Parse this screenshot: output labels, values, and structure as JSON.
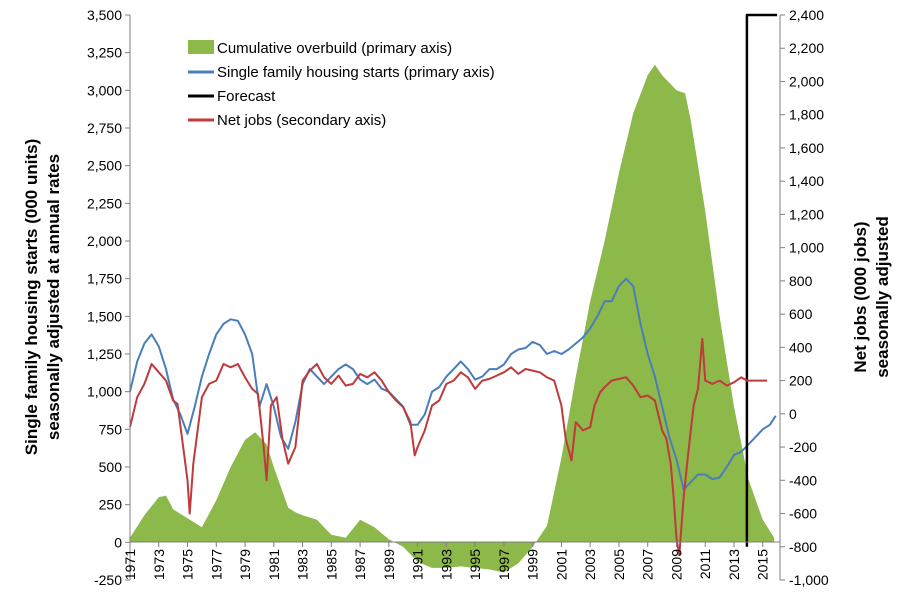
{
  "chart_data": {
    "type": "area",
    "title": "",
    "ylabel_lines": [
      "Single family housing starts (000 units)",
      "seasonally adjusted at annual rates"
    ],
    "y2label_lines": [
      "Net jobs (000 jobs)",
      "seasonally adjusted"
    ],
    "xlim": [
      1971,
      2016.2
    ],
    "ylim": [
      -250,
      3500
    ],
    "y2lim": [
      -1000,
      2400
    ],
    "x_ticks": [
      "1971",
      "1973",
      "1975",
      "1977",
      "1979",
      "1981",
      "1983",
      "1985",
      "1987",
      "1989",
      "1991",
      "1993",
      "1995",
      "1997",
      "1999",
      "2001",
      "2003",
      "2005",
      "2007",
      "2009",
      "2011",
      "2013",
      "2015"
    ],
    "y_ticks": [
      "-250",
      "0",
      "250",
      "500",
      "750",
      "1,000",
      "1,250",
      "1,500",
      "1,750",
      "2,000",
      "2,250",
      "2,500",
      "2,750",
      "3,000",
      "3,250",
      "3,500"
    ],
    "y2_ticks": [
      "-1,000",
      "-800",
      "-600",
      "-400",
      "-200",
      "0",
      "200",
      "400",
      "600",
      "800",
      "1,000",
      "1,200",
      "1,400",
      "1,600",
      "1,800",
      "2,000",
      "2,200",
      "2,400"
    ],
    "legend_position": "top-left",
    "grid": false,
    "series": [
      {
        "name": "Cumulative overbuild (primary axis)",
        "axis": "primary",
        "kind": "area",
        "color": "#8db84a",
        "x": [
          1971,
          1972,
          1973,
          1973.5,
          1974,
          1975,
          1976,
          1977,
          1978,
          1979,
          1979.7,
          1980.5,
          1981,
          1982,
          1982.5,
          1983,
          1984,
          1985,
          1986,
          1987,
          1988,
          1989,
          1990,
          1991,
          1992,
          1993,
          1994,
          1995,
          1996,
          1997,
          1998,
          1999,
          2000,
          2001,
          2002,
          2003,
          2004,
          2005,
          2006,
          2007,
          2007.5,
          2008,
          2009,
          2009.6,
          2010,
          2011,
          2012,
          2013,
          2014,
          2015,
          2015.8
        ],
        "y": [
          30,
          180,
          300,
          310,
          220,
          160,
          100,
          280,
          500,
          680,
          730,
          650,
          500,
          230,
          200,
          180,
          150,
          50,
          30,
          150,
          100,
          20,
          -30,
          -130,
          -170,
          -170,
          -160,
          -170,
          -180,
          -200,
          -140,
          -30,
          110,
          560,
          1100,
          1600,
          2000,
          2450,
          2850,
          3100,
          3170,
          3100,
          3000,
          2980,
          2800,
          2200,
          1500,
          900,
          420,
          150,
          30
        ]
      },
      {
        "name": "Single family housing starts (primary axis)",
        "axis": "primary",
        "kind": "line",
        "color": "#4a7ebb",
        "x": [
          1971,
          1971.5,
          1972,
          1972.5,
          1973,
          1973.5,
          1974,
          1974.5,
          1975,
          1975.5,
          1976,
          1976.5,
          1977,
          1977.5,
          1978,
          1978.5,
          1979,
          1979.5,
          1980,
          1980.5,
          1981,
          1981.5,
          1982,
          1982.5,
          1983,
          1983.5,
          1984,
          1984.5,
          1985,
          1985.5,
          1986,
          1986.5,
          1987,
          1987.5,
          1988,
          1988.5,
          1989,
          1989.5,
          1990,
          1990.5,
          1991,
          1991.5,
          1992,
          1992.5,
          1993,
          1993.5,
          1994,
          1994.5,
          1995,
          1995.5,
          1996,
          1996.5,
          1997,
          1997.5,
          1998,
          1998.5,
          1999,
          1999.5,
          2000,
          2000.5,
          2001,
          2001.5,
          2002,
          2002.5,
          2003,
          2003.5,
          2004,
          2004.5,
          2005,
          2005.5,
          2006,
          2006.5,
          2007,
          2007.5,
          2008,
          2008.5,
          2009,
          2009.5,
          2010,
          2010.5,
          2011,
          2011.5,
          2012,
          2012.5,
          2013,
          2013.5,
          2014,
          2014.5,
          2015,
          2015.5,
          2015.9
        ],
        "y": [
          1000,
          1200,
          1320,
          1380,
          1300,
          1150,
          950,
          850,
          720,
          900,
          1100,
          1250,
          1380,
          1450,
          1480,
          1470,
          1380,
          1250,
          900,
          1050,
          900,
          700,
          620,
          800,
          1050,
          1150,
          1100,
          1050,
          1100,
          1150,
          1180,
          1150,
          1080,
          1050,
          1080,
          1020,
          1000,
          950,
          900,
          780,
          780,
          850,
          1000,
          1030,
          1100,
          1150,
          1200,
          1150,
          1080,
          1100,
          1150,
          1150,
          1180,
          1250,
          1280,
          1290,
          1330,
          1310,
          1250,
          1270,
          1250,
          1280,
          1320,
          1360,
          1420,
          1500,
          1600,
          1600,
          1700,
          1750,
          1700,
          1450,
          1250,
          1100,
          900,
          700,
          550,
          350,
          400,
          450,
          450,
          420,
          430,
          500,
          580,
          600,
          650,
          700,
          750,
          780,
          840
        ]
      },
      {
        "name": "Forecast",
        "axis": "secondary",
        "kind": "line",
        "color": "#000000",
        "x": [
          2013.9,
          2013.9,
          2016.0
        ],
        "y": [
          -800,
          2400,
          2400
        ]
      },
      {
        "name": "Net jobs (secondary axis)",
        "axis": "secondary",
        "kind": "line",
        "color": "#c0393b",
        "x": [
          1971,
          1971.5,
          1972,
          1972.5,
          1973,
          1973.5,
          1974,
          1974.3,
          1974.7,
          1975.0,
          1975.15,
          1975.4,
          1976,
          1976.5,
          1977,
          1977.5,
          1978,
          1978.5,
          1979,
          1979.5,
          1979.9,
          1980.3,
          1980.5,
          1980.8,
          1981.2,
          1981.6,
          1982,
          1982.5,
          1983,
          1983.5,
          1984,
          1984.5,
          1985,
          1985.5,
          1986,
          1986.5,
          1987,
          1987.5,
          1988,
          1988.5,
          1989,
          1989.5,
          1990,
          1990.5,
          1990.8,
          1991,
          1991.5,
          1992,
          1992.5,
          1993,
          1993.5,
          1994,
          1994.5,
          1995,
          1995.5,
          1996,
          1996.5,
          1997,
          1997.5,
          1998,
          1998.5,
          1999,
          1999.5,
          2000,
          2000.5,
          2001,
          2001.3,
          2001.7,
          2002,
          2002.5,
          2003,
          2003.3,
          2003.7,
          2004,
          2004.5,
          2005,
          2005.5,
          2006,
          2006.5,
          2007,
          2007.5,
          2008,
          2008.3,
          2008.6,
          2008.8,
          2009.0,
          2009.2,
          2009.5,
          2009.8,
          2010.0,
          2010.2,
          2010.5,
          2010.8,
          2011,
          2011.5,
          2012,
          2012.5,
          2013,
          2013.5,
          2013.9,
          2015.3
        ],
        "y": [
          -80,
          100,
          180,
          300,
          250,
          200,
          80,
          60,
          -200,
          -400,
          -600,
          -300,
          100,
          180,
          200,
          300,
          280,
          300,
          220,
          150,
          120,
          -200,
          -400,
          50,
          100,
          -150,
          -300,
          -200,
          200,
          260,
          300,
          220,
          180,
          230,
          170,
          180,
          240,
          220,
          250,
          200,
          130,
          80,
          40,
          -50,
          -250,
          -200,
          -100,
          50,
          80,
          180,
          200,
          250,
          220,
          150,
          200,
          210,
          230,
          250,
          280,
          240,
          270,
          260,
          250,
          220,
          200,
          50,
          -150,
          -280,
          -50,
          -100,
          -80,
          50,
          130,
          160,
          200,
          210,
          220,
          170,
          100,
          110,
          80,
          -100,
          -150,
          -300,
          -500,
          -750,
          -850,
          -500,
          -250,
          -100,
          50,
          150,
          450,
          200,
          180,
          200,
          170,
          190,
          220,
          200,
          200
        ]
      }
    ]
  }
}
